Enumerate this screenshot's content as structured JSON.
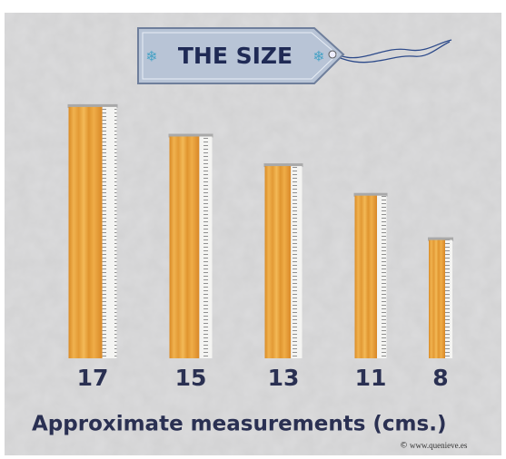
{
  "chart_data": {
    "type": "bar",
    "title": "THE SIZE",
    "values": [
      17,
      15,
      13,
      11,
      8
    ],
    "x_label": "Approximate measurements (cms.)",
    "credit": "www.quenieve.es",
    "color": "#e8a33c"
  }
}
